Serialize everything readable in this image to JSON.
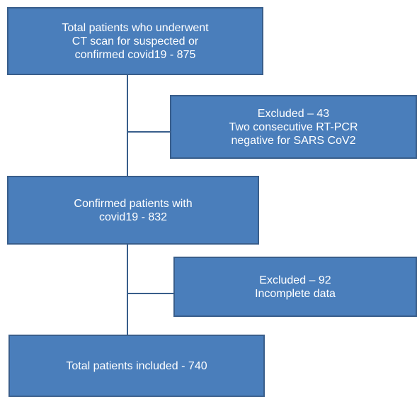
{
  "flow": {
    "total_ct": {
      "lines": [
        "Total patients who underwent",
        "CT scan for suspected or",
        "confirmed covid19 - 875"
      ]
    },
    "excluded_rtpcr": {
      "lines": [
        "Excluded – 43",
        "Two consecutive RT-PCR",
        "negative for SARS CoV2"
      ]
    },
    "confirmed": {
      "lines": [
        "Confirmed patients with",
        "covid19 - 832"
      ]
    },
    "excluded_incomplete": {
      "lines": [
        "Excluded – 92",
        "Incomplete data"
      ]
    },
    "total_included": {
      "lines": [
        "Total patients included - 740"
      ]
    }
  },
  "colors": {
    "box_fill": "#4a7ebb",
    "box_border": "#395e8b",
    "box_text": "#ffffff"
  }
}
